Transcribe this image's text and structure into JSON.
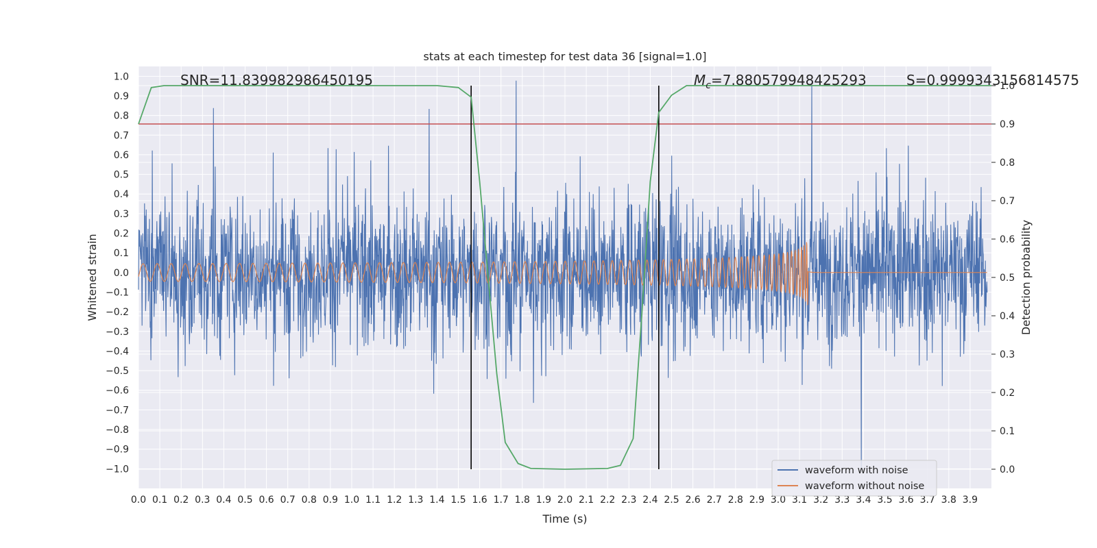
{
  "chart_data": {
    "type": "line",
    "title": "stats at each timestep for test data 36 [signal=1.0]",
    "xlabel": "Time (s)",
    "ylabel_left": "Whitened strain",
    "ylabel_right": "Detection probability",
    "xlim": [
      0.0,
      4.0
    ],
    "ylim_left": [
      -1.1,
      1.05
    ],
    "ylim_right": [
      -0.05,
      1.05
    ],
    "grid": true,
    "x_ticks": [
      "0.0",
      "0.1",
      "0.2",
      "0.3",
      "0.4",
      "0.5",
      "0.6",
      "0.7",
      "0.8",
      "0.9",
      "1.0",
      "1.1",
      "1.2",
      "1.3",
      "1.4",
      "1.5",
      "1.6",
      "1.7",
      "1.8",
      "1.9",
      "2.0",
      "2.1",
      "2.2",
      "2.3",
      "2.4",
      "2.5",
      "2.6",
      "2.7",
      "2.8",
      "2.9",
      "3.0",
      "3.1",
      "3.2",
      "3.3",
      "3.4",
      "3.5",
      "3.6",
      "3.7",
      "3.8",
      "3.9"
    ],
    "y_ticks_left": [
      "1.0",
      "0.9",
      "0.8",
      "0.7",
      "0.6",
      "0.5",
      "0.4",
      "0.3",
      "0.2",
      "0.1",
      "0.0",
      "−0.1",
      "−0.2",
      "−0.3",
      "−0.4",
      "−0.5",
      "−0.6",
      "−0.7",
      "−0.8",
      "−0.9",
      "−1.0"
    ],
    "y_ticks_right": [
      "1.0",
      "0.9",
      "0.8",
      "0.7",
      "0.6",
      "0.5",
      "0.4",
      "0.3",
      "0.2",
      "0.1",
      "0.0"
    ],
    "annotations": {
      "snr": "SNR=11.839982986450195",
      "mc_symbol": "M",
      "mc_sub": "c",
      "mc_value": "=7.880579948425293",
      "s": "S=0.9999343156814575"
    },
    "threshold": {
      "value": 0.9,
      "axis": "right",
      "color": "#c44e52"
    },
    "vertical_lines": [
      1.56,
      2.44
    ],
    "detection_probability": {
      "x": [
        0.0,
        0.06,
        0.12,
        0.2,
        0.4,
        0.8,
        1.2,
        1.4,
        1.5,
        1.56,
        1.6,
        1.64,
        1.68,
        1.72,
        1.78,
        1.84,
        2.0,
        2.2,
        2.26,
        2.32,
        2.36,
        2.4,
        2.44,
        2.5,
        2.57,
        2.8,
        3.2,
        3.6,
        4.0
      ],
      "y": [
        0.9,
        0.995,
        1.0,
        1.0,
        1.0,
        1.0,
        1.0,
        1.0,
        0.995,
        0.97,
        0.75,
        0.5,
        0.25,
        0.07,
        0.015,
        0.002,
        0.0,
        0.002,
        0.01,
        0.08,
        0.4,
        0.75,
        0.93,
        0.975,
        1.0,
        1.0,
        1.0,
        1.0,
        1.0
      ]
    },
    "series": [
      {
        "name": "waveform with noise",
        "color": "#4c72b0"
      },
      {
        "name": "waveform without noise",
        "color": "#dd8452"
      },
      {
        "name": "",
        "color": "#55a868"
      }
    ]
  }
}
